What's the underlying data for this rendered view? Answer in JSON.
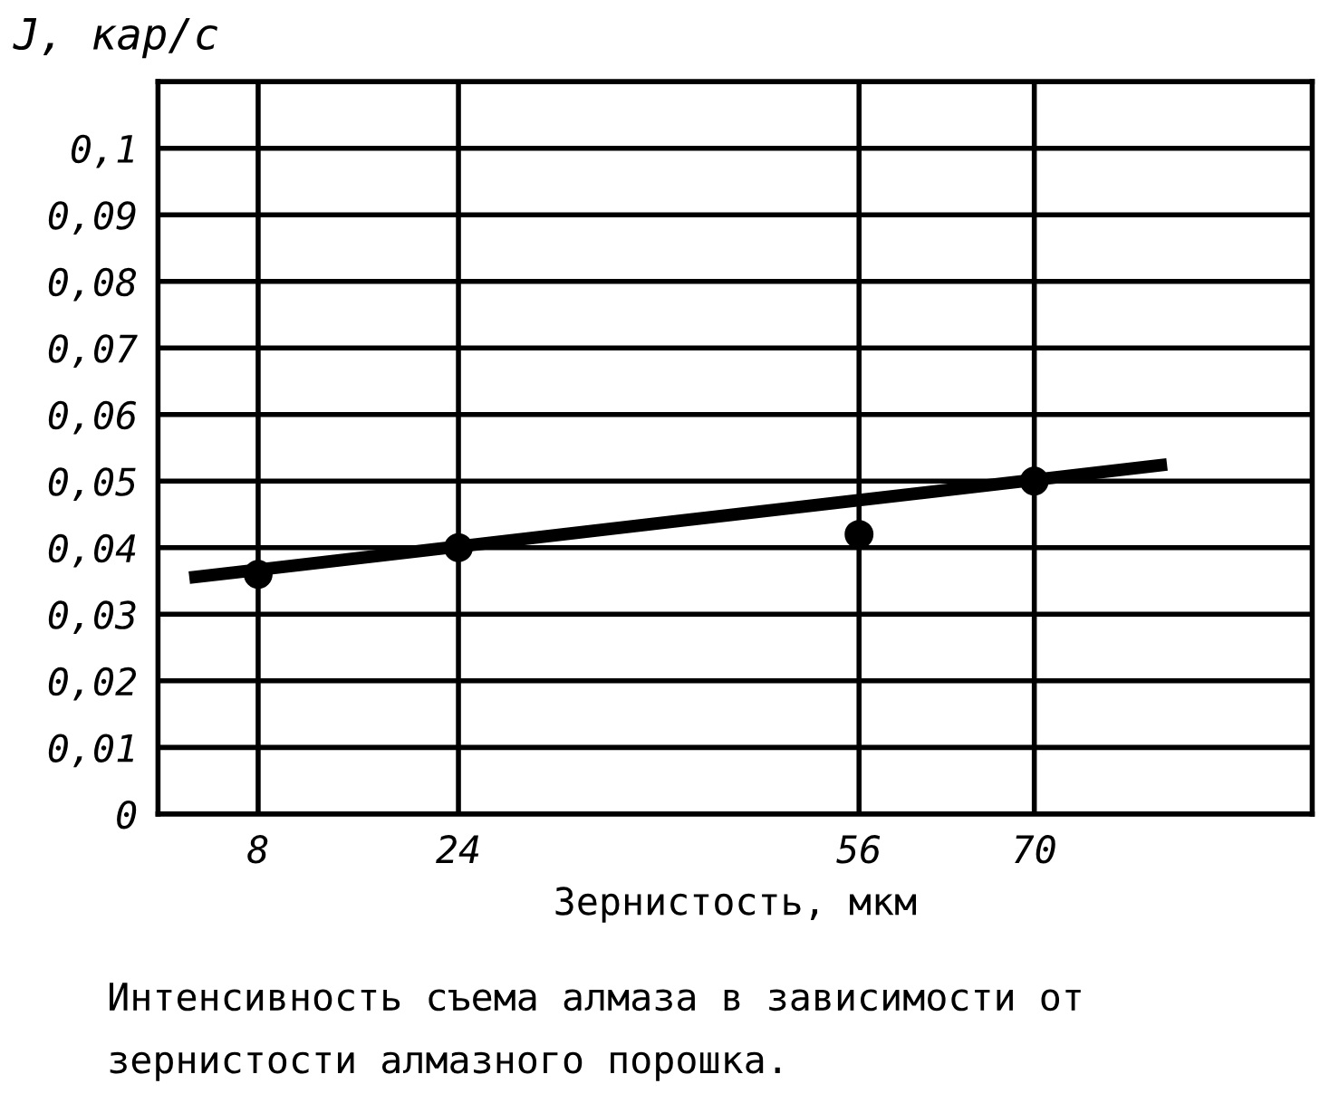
{
  "chart_data": {
    "type": "scatter",
    "ylabel": "J, кар/с",
    "xlabel": "Зернистость, мкм",
    "annotations": [
      "Интенсивность съема алмаза в зависимости от зернистости алмазного порошка."
    ],
    "x": [
      8,
      24,
      56,
      70
    ],
    "series": [
      {
        "color": "#000000",
        "marker": "circle",
        "values": [
          0.036,
          0.04,
          0.042,
          0.05
        ]
      },
      {
        "type": "line",
        "color": "#000000",
        "marker": "none",
        "x": [
          2.5,
          80.6
        ],
        "values": [
          0.0355,
          0.0525
        ]
      }
    ],
    "xlim": [
      0,
      92.2
    ],
    "xticks": [
      8,
      24,
      56,
      70
    ],
    "ylim": [
      0,
      0.11
    ],
    "yticks": [
      0,
      {
        "value": 0.01,
        "label": "0,01"
      },
      {
        "value": 0.02,
        "label": "0,02"
      },
      {
        "value": 0.03,
        "label": "0,03"
      },
      {
        "value": 0.04,
        "label": "0,04"
      },
      {
        "value": 0.05,
        "label": "0,05"
      },
      {
        "value": 0.06,
        "label": "0,06"
      },
      {
        "value": 0.07,
        "label": "0,07"
      },
      {
        "value": 0.08,
        "label": "0,08"
      },
      {
        "value": 0.09,
        "label": "0,09"
      },
      {
        "value": 0.1,
        "label": "0,1"
      }
    ],
    "grid": true,
    "legend": false
  }
}
